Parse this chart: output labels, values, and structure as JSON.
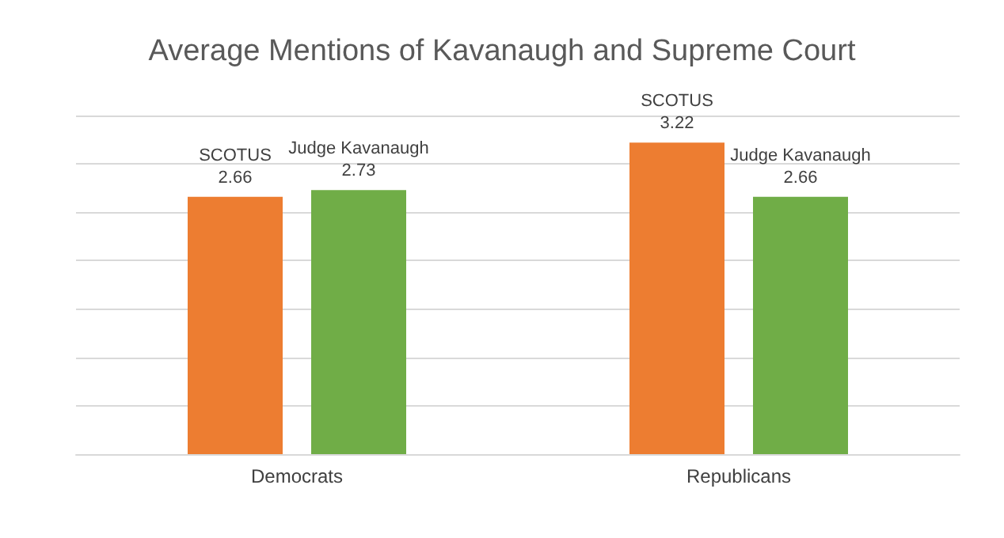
{
  "chart_data": {
    "type": "bar",
    "title": "Average Mentions of Kavanaugh and Supreme Court",
    "categories": [
      "Democrats",
      "Republicans"
    ],
    "series": [
      {
        "name": "SCOTUS",
        "color": "#ed7d31",
        "values": [
          2.66,
          3.22
        ]
      },
      {
        "name": "Judge Kavanaugh",
        "color": "#70ad47",
        "values": [
          2.73,
          2.66
        ]
      }
    ],
    "ylim": [
      0,
      3.5
    ],
    "yticks": [
      0,
      0.5,
      1,
      1.5,
      2,
      2.5,
      3,
      3.5
    ],
    "grid": "y",
    "tick_labels": "x",
    "data_labels": true,
    "legend": false
  }
}
